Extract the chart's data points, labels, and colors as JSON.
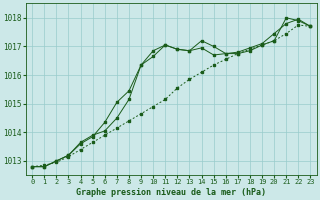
{
  "title": "Graphe pression niveau de la mer (hPa)",
  "xlim": [
    -0.5,
    23.5
  ],
  "ylim": [
    1012.5,
    1018.5
  ],
  "yticks": [
    1013,
    1014,
    1015,
    1016,
    1017,
    1018
  ],
  "xticks": [
    0,
    1,
    2,
    3,
    4,
    5,
    6,
    7,
    8,
    9,
    10,
    11,
    12,
    13,
    14,
    15,
    16,
    17,
    18,
    19,
    20,
    21,
    22,
    23
  ],
  "bg_color": "#cce8e8",
  "grid_color": "#99cccc",
  "line_color": "#1a5c1a",
  "series1_x": [
    0,
    1,
    2,
    3,
    4,
    5,
    6,
    7,
    8,
    9,
    10,
    11,
    12,
    13,
    14,
    15,
    16,
    17,
    18,
    19,
    20,
    21,
    22,
    23
  ],
  "series1_y": [
    1012.8,
    1012.8,
    1013.0,
    1013.2,
    1013.6,
    1013.85,
    1014.35,
    1015.05,
    1015.45,
    1016.35,
    1016.85,
    1017.05,
    1016.9,
    1016.85,
    1017.2,
    1017.0,
    1016.75,
    1016.75,
    1016.85,
    1017.05,
    1017.2,
    1018.0,
    1017.9,
    1017.7
  ],
  "series2_x": [
    0,
    1,
    2,
    3,
    4,
    5,
    6,
    7,
    8,
    9,
    10,
    11,
    12,
    13,
    14,
    15,
    16,
    17,
    18,
    19,
    20,
    21,
    22,
    23
  ],
  "series2_y": [
    1012.8,
    1012.8,
    1013.0,
    1013.2,
    1013.65,
    1013.9,
    1014.05,
    1014.5,
    1015.15,
    1016.35,
    1016.65,
    1017.05,
    1016.9,
    1016.85,
    1016.95,
    1016.7,
    1016.75,
    1016.8,
    1016.95,
    1017.1,
    1017.45,
    1017.8,
    1017.95,
    1017.7
  ],
  "series3_x": [
    0,
    1,
    2,
    3,
    4,
    5,
    6,
    7,
    8,
    9,
    10,
    11,
    12,
    13,
    14,
    15,
    16,
    17,
    18,
    19,
    20,
    21,
    22,
    23
  ],
  "series3_y": [
    1012.8,
    1012.85,
    1012.95,
    1013.15,
    1013.4,
    1013.65,
    1013.9,
    1014.15,
    1014.4,
    1014.65,
    1014.9,
    1015.15,
    1015.55,
    1015.85,
    1016.1,
    1016.35,
    1016.55,
    1016.75,
    1016.9,
    1017.05,
    1017.2,
    1017.45,
    1017.75,
    1017.7
  ],
  "figsize": [
    3.2,
    2.0
  ],
  "dpi": 100
}
